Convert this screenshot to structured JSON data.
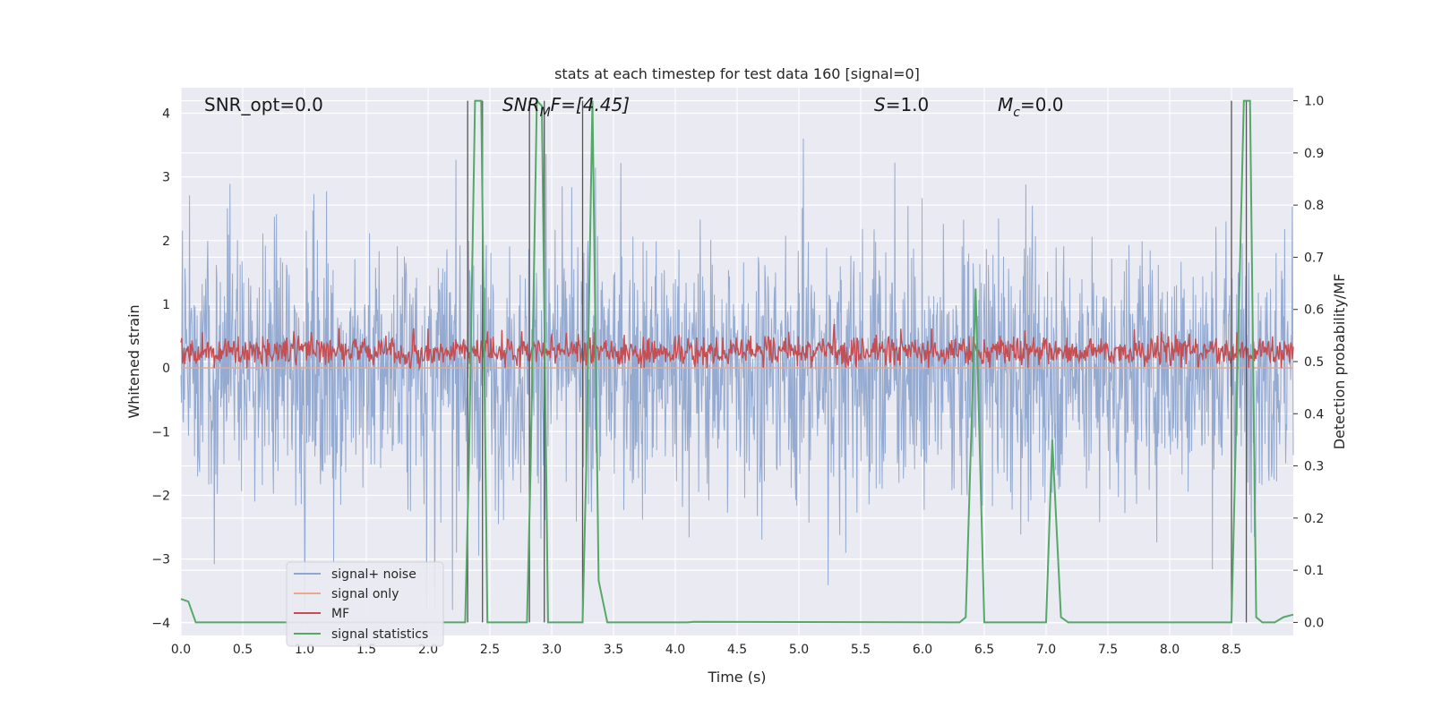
{
  "chart_data": {
    "type": "line",
    "title": "stats at each timestep for test data 160 [signal=0]",
    "xlabel": "Time (s)",
    "ylabel": "Whitened strain",
    "ylabel_right": "Detection probability/MF",
    "xlim": [
      0.0,
      9.0
    ],
    "ylim": [
      -4.2,
      4.4
    ],
    "ylim_right": [
      -0.025,
      1.025
    ],
    "x_ticks": [
      "0.0",
      "0.5",
      "1.0",
      "1.5",
      "2.0",
      "2.5",
      "3.0",
      "3.5",
      "4.0",
      "4.5",
      "5.0",
      "5.5",
      "6.0",
      "6.5",
      "7.0",
      "7.5",
      "8.0",
      "8.5"
    ],
    "y_ticks": [
      "4",
      "3",
      "2",
      "1",
      "0",
      "−1",
      "−2",
      "−3",
      "−4"
    ],
    "y_ticks_right": [
      "1.0",
      "0.9",
      "0.8",
      "0.7",
      "0.6",
      "0.5",
      "0.4",
      "0.3",
      "0.2",
      "0.1",
      "0.0"
    ],
    "grid": true,
    "legend_position": "lower-left",
    "annotations": {
      "snr_opt": "SNR_opt=0.0",
      "snr_mf_main": "SNR",
      "snr_mf_sub": "M",
      "snr_mf_rest": "F=[4.45]",
      "s_var": "S",
      "s_rest": "=1.0",
      "mc_var": "M",
      "mc_sub": "c",
      "mc_rest": "=0.0"
    },
    "series": [
      {
        "name": "signal+ noise",
        "color": "#8fa6cf",
        "description_values": {
          "x_range": [
            0.0,
            9.0
          ],
          "amplitude_typical": [
            -1.6,
            1.6
          ],
          "extremes": [
            -3.7,
            3.6
          ]
        }
      },
      {
        "name": "signal only",
        "color": "#e8a98f",
        "values_constant": 0.0
      },
      {
        "name": "MF",
        "color": "#c44e52",
        "description_values": {
          "mean": 0.25,
          "range": [
            0.0,
            1.0
          ]
        }
      },
      {
        "name": "signal statistics",
        "color": "#55a868",
        "axis": "right",
        "x": [
          0.0,
          0.06,
          0.12,
          2.3,
          2.33,
          2.38,
          2.43,
          2.48,
          2.8,
          2.83,
          2.88,
          2.92,
          2.97,
          3.25,
          3.28,
          3.33,
          3.38,
          3.45,
          4.1,
          4.15,
          6.3,
          6.35,
          6.43,
          6.5,
          6.55,
          7.0,
          7.05,
          7.12,
          7.18,
          8.5,
          8.55,
          8.6,
          8.65,
          8.7,
          8.75,
          8.85,
          8.92,
          9.0
        ],
        "y": [
          0.045,
          0.04,
          0.0,
          0.0,
          0.3,
          1.0,
          1.0,
          0.0,
          0.0,
          0.3,
          1.0,
          0.99,
          0.0,
          0.0,
          0.3,
          1.0,
          0.08,
          0.0,
          0.0,
          0.001,
          0.0,
          0.01,
          0.64,
          0.0,
          0.0,
          0.0,
          0.35,
          0.01,
          0.0,
          0.0,
          0.5,
          1.0,
          1.0,
          0.01,
          0.0,
          0.0,
          0.01,
          0.015
        ]
      }
    ],
    "vertical_markers": [
      2.32,
      2.44,
      2.82,
      2.94,
      3.25,
      8.5,
      8.62
    ]
  },
  "legend": {
    "signal_noise": "signal+ noise",
    "signal_only": "signal only",
    "mf": "MF",
    "signal_statistics": "signal statistics"
  },
  "colors": {
    "plot_background": "#eaeaf2",
    "grid": "#ffffff",
    "noise": "#8fa6cf",
    "signal_only": "#e8a98f",
    "mf": "#c44e52",
    "statistics": "#55a868",
    "markers": "#555555"
  }
}
